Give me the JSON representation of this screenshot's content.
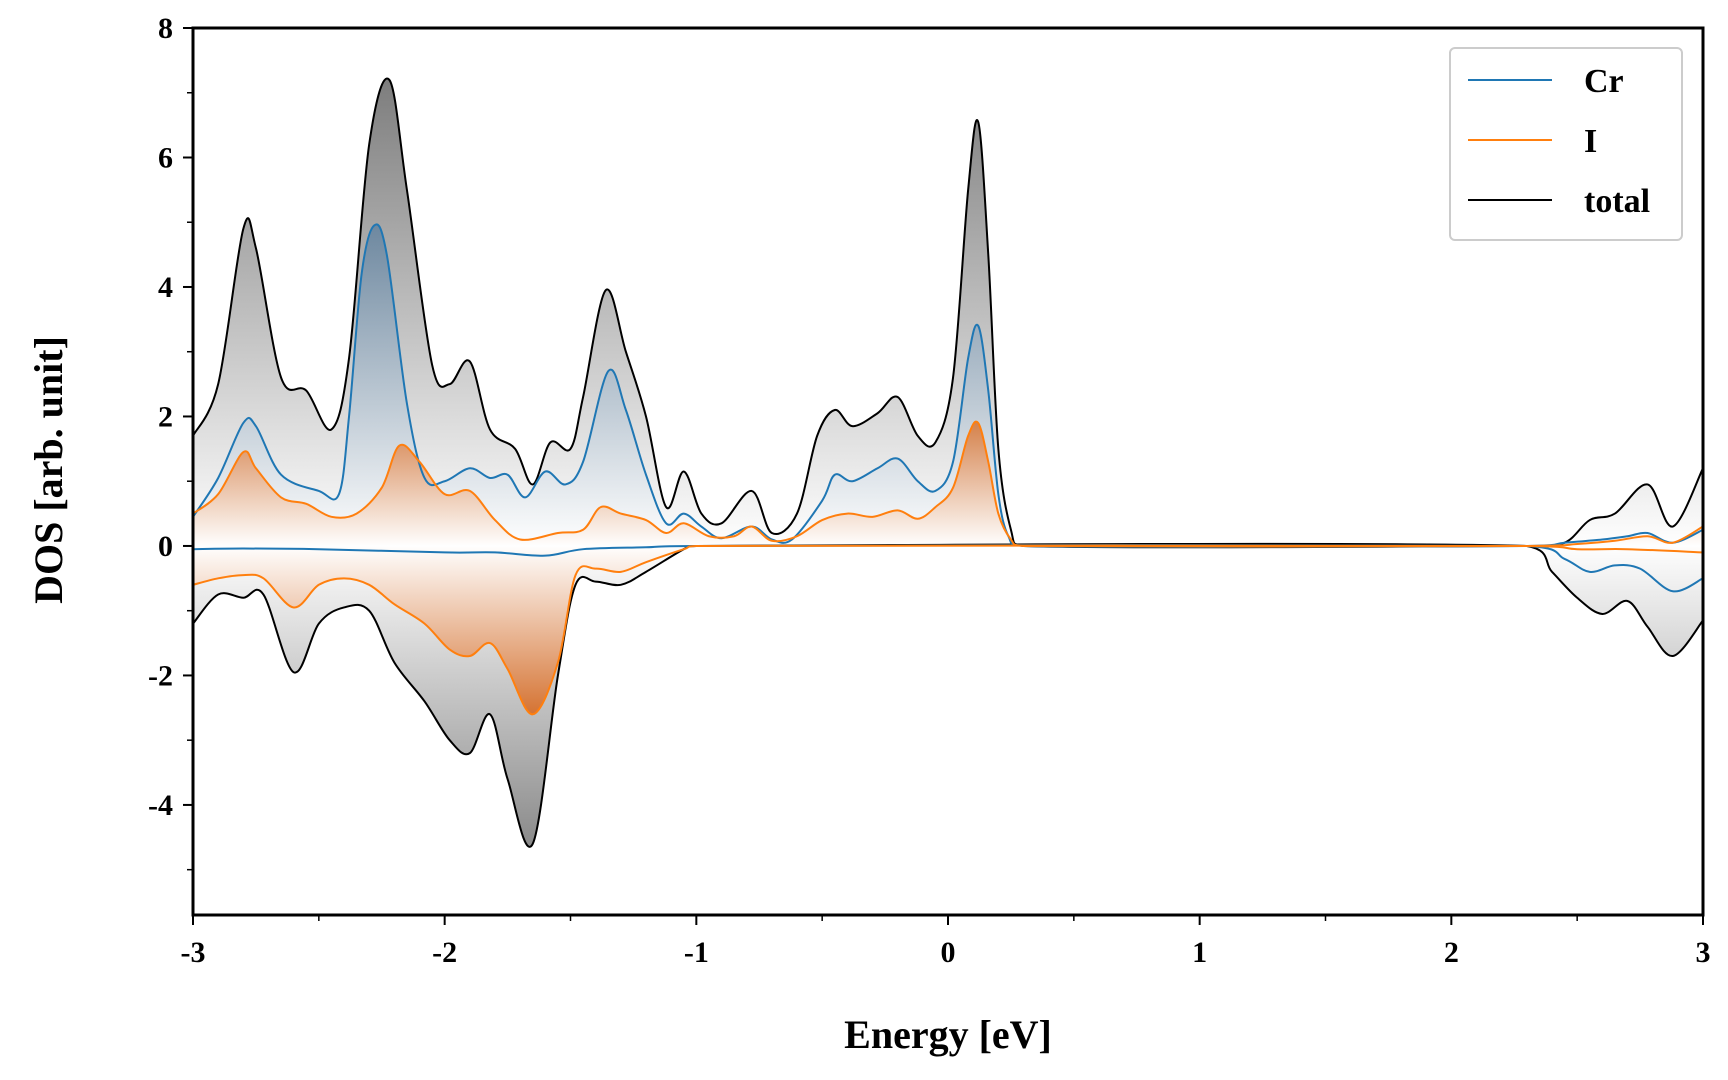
{
  "chart_data": {
    "type": "line",
    "xlabel": "Energy [eV]",
    "ylabel": "DOS [arb. unit]",
    "xlim": [
      -3,
      3
    ],
    "ylim": [
      -5.7,
      8.0
    ],
    "xticks": [
      -3,
      -2,
      -1,
      0,
      1,
      2,
      3
    ],
    "yticks": [
      -4,
      -2,
      0,
      2,
      4,
      6,
      8
    ],
    "grid": false,
    "legend_position": "top-right",
    "series": [
      {
        "name": "Cr",
        "color": "#1f77b4",
        "spin_up": [
          [
            -3,
            0.45
          ],
          [
            -2.9,
            1.05
          ],
          [
            -2.8,
            1.9
          ],
          [
            -2.75,
            1.85
          ],
          [
            -2.65,
            1.1
          ],
          [
            -2.5,
            0.85
          ],
          [
            -2.42,
            0.8
          ],
          [
            -2.38,
            2.0
          ],
          [
            -2.33,
            4.2
          ],
          [
            -2.28,
            4.95
          ],
          [
            -2.23,
            4.5
          ],
          [
            -2.15,
            2.2
          ],
          [
            -2.08,
            1.05
          ],
          [
            -2.0,
            1.0
          ],
          [
            -1.9,
            1.2
          ],
          [
            -1.82,
            1.05
          ],
          [
            -1.75,
            1.1
          ],
          [
            -1.68,
            0.75
          ],
          [
            -1.6,
            1.15
          ],
          [
            -1.52,
            0.95
          ],
          [
            -1.45,
            1.3
          ],
          [
            -1.35,
            2.7
          ],
          [
            -1.28,
            2.1
          ],
          [
            -1.2,
            1.1
          ],
          [
            -1.12,
            0.35
          ],
          [
            -1.05,
            0.5
          ],
          [
            -0.98,
            0.3
          ],
          [
            -0.9,
            0.12
          ],
          [
            -0.78,
            0.3
          ],
          [
            -0.7,
            0.1
          ],
          [
            -0.62,
            0.1
          ],
          [
            -0.5,
            0.7
          ],
          [
            -0.45,
            1.1
          ],
          [
            -0.38,
            1.0
          ],
          [
            -0.28,
            1.2
          ],
          [
            -0.2,
            1.35
          ],
          [
            -0.12,
            1.0
          ],
          [
            -0.05,
            0.85
          ],
          [
            0.02,
            1.3
          ],
          [
            0.08,
            2.9
          ],
          [
            0.12,
            3.4
          ],
          [
            0.16,
            2.4
          ],
          [
            0.2,
            0.8
          ],
          [
            0.24,
            0.15
          ],
          [
            0.3,
            0.0
          ],
          [
            2.3,
            0.0
          ],
          [
            2.45,
            0.05
          ],
          [
            2.6,
            0.1
          ],
          [
            2.7,
            0.15
          ],
          [
            2.78,
            0.2
          ],
          [
            2.88,
            0.05
          ],
          [
            3,
            0.25
          ]
        ],
        "spin_down": [
          [
            -3,
            -0.05
          ],
          [
            -2.8,
            -0.04
          ],
          [
            -2.5,
            -0.05
          ],
          [
            -2.0,
            -0.1
          ],
          [
            -1.8,
            -0.1
          ],
          [
            -1.6,
            -0.15
          ],
          [
            -1.45,
            -0.05
          ],
          [
            -1.2,
            -0.02
          ],
          [
            -1.0,
            0.0
          ],
          [
            2.3,
            0.0
          ],
          [
            2.45,
            -0.2
          ],
          [
            2.55,
            -0.4
          ],
          [
            2.65,
            -0.3
          ],
          [
            2.75,
            -0.35
          ],
          [
            2.88,
            -0.7
          ],
          [
            3,
            -0.5
          ]
        ]
      },
      {
        "name": "I",
        "color": "#ff7f0e",
        "spin_up": [
          [
            -3,
            0.5
          ],
          [
            -2.9,
            0.8
          ],
          [
            -2.8,
            1.45
          ],
          [
            -2.75,
            1.2
          ],
          [
            -2.65,
            0.75
          ],
          [
            -2.55,
            0.65
          ],
          [
            -2.45,
            0.45
          ],
          [
            -2.35,
            0.5
          ],
          [
            -2.25,
            0.9
          ],
          [
            -2.18,
            1.55
          ],
          [
            -2.1,
            1.3
          ],
          [
            -2.0,
            0.8
          ],
          [
            -1.9,
            0.85
          ],
          [
            -1.8,
            0.4
          ],
          [
            -1.7,
            0.1
          ],
          [
            -1.55,
            0.2
          ],
          [
            -1.45,
            0.25
          ],
          [
            -1.38,
            0.6
          ],
          [
            -1.3,
            0.5
          ],
          [
            -1.2,
            0.4
          ],
          [
            -1.12,
            0.2
          ],
          [
            -1.05,
            0.35
          ],
          [
            -0.95,
            0.15
          ],
          [
            -0.85,
            0.15
          ],
          [
            -0.78,
            0.3
          ],
          [
            -0.7,
            0.08
          ],
          [
            -0.6,
            0.15
          ],
          [
            -0.5,
            0.4
          ],
          [
            -0.4,
            0.5
          ],
          [
            -0.3,
            0.45
          ],
          [
            -0.2,
            0.55
          ],
          [
            -0.12,
            0.42
          ],
          [
            -0.05,
            0.6
          ],
          [
            0.02,
            0.9
          ],
          [
            0.08,
            1.7
          ],
          [
            0.12,
            1.9
          ],
          [
            0.16,
            1.3
          ],
          [
            0.2,
            0.5
          ],
          [
            0.25,
            0.1
          ],
          [
            0.3,
            0.0
          ],
          [
            2.3,
            0.0
          ],
          [
            2.5,
            0.03
          ],
          [
            2.65,
            0.08
          ],
          [
            2.78,
            0.15
          ],
          [
            2.88,
            0.05
          ],
          [
            3,
            0.3
          ]
        ],
        "spin_down": [
          [
            -3,
            -0.6
          ],
          [
            -2.9,
            -0.5
          ],
          [
            -2.8,
            -0.45
          ],
          [
            -2.72,
            -0.5
          ],
          [
            -2.6,
            -0.95
          ],
          [
            -2.5,
            -0.6
          ],
          [
            -2.4,
            -0.5
          ],
          [
            -2.3,
            -0.6
          ],
          [
            -2.2,
            -0.9
          ],
          [
            -2.08,
            -1.2
          ],
          [
            -1.98,
            -1.6
          ],
          [
            -1.9,
            -1.7
          ],
          [
            -1.82,
            -1.5
          ],
          [
            -1.75,
            -1.9
          ],
          [
            -1.65,
            -2.6
          ],
          [
            -1.55,
            -1.8
          ],
          [
            -1.48,
            -0.45
          ],
          [
            -1.4,
            -0.35
          ],
          [
            -1.3,
            -0.4
          ],
          [
            -1.2,
            -0.25
          ],
          [
            -1.05,
            -0.05
          ],
          [
            -1.0,
            0.0
          ],
          [
            2.3,
            0.0
          ],
          [
            2.5,
            -0.05
          ],
          [
            2.7,
            -0.05
          ],
          [
            3,
            -0.1
          ]
        ]
      },
      {
        "name": "total",
        "color": "#000000",
        "spin_up": [
          [
            -3,
            1.7
          ],
          [
            -2.9,
            2.5
          ],
          [
            -2.8,
            4.9
          ],
          [
            -2.75,
            4.6
          ],
          [
            -2.65,
            2.6
          ],
          [
            -2.55,
            2.4
          ],
          [
            -2.45,
            1.8
          ],
          [
            -2.38,
            2.9
          ],
          [
            -2.3,
            6.2
          ],
          [
            -2.22,
            7.2
          ],
          [
            -2.15,
            5.5
          ],
          [
            -2.05,
            2.8
          ],
          [
            -1.98,
            2.5
          ],
          [
            -1.9,
            2.85
          ],
          [
            -1.82,
            1.8
          ],
          [
            -1.72,
            1.5
          ],
          [
            -1.65,
            0.95
          ],
          [
            -1.58,
            1.6
          ],
          [
            -1.5,
            1.5
          ],
          [
            -1.45,
            2.3
          ],
          [
            -1.36,
            3.95
          ],
          [
            -1.28,
            3.0
          ],
          [
            -1.2,
            2.0
          ],
          [
            -1.12,
            0.6
          ],
          [
            -1.05,
            1.15
          ],
          [
            -0.98,
            0.5
          ],
          [
            -0.9,
            0.35
          ],
          [
            -0.78,
            0.85
          ],
          [
            -0.7,
            0.2
          ],
          [
            -0.6,
            0.5
          ],
          [
            -0.52,
            1.7
          ],
          [
            -0.45,
            2.1
          ],
          [
            -0.38,
            1.85
          ],
          [
            -0.28,
            2.05
          ],
          [
            -0.2,
            2.3
          ],
          [
            -0.12,
            1.7
          ],
          [
            -0.05,
            1.6
          ],
          [
            0.02,
            2.6
          ],
          [
            0.08,
            5.5
          ],
          [
            0.12,
            6.55
          ],
          [
            0.16,
            4.5
          ],
          [
            0.2,
            1.5
          ],
          [
            0.25,
            0.25
          ],
          [
            0.3,
            0.0
          ],
          [
            2.3,
            0.0
          ],
          [
            2.45,
            0.05
          ],
          [
            2.55,
            0.4
          ],
          [
            2.65,
            0.5
          ],
          [
            2.78,
            0.95
          ],
          [
            2.88,
            0.3
          ],
          [
            3,
            1.2
          ]
        ],
        "spin_down": [
          [
            -3,
            -1.2
          ],
          [
            -2.9,
            -0.75
          ],
          [
            -2.8,
            -0.8
          ],
          [
            -2.72,
            -0.75
          ],
          [
            -2.6,
            -1.95
          ],
          [
            -2.5,
            -1.2
          ],
          [
            -2.4,
            -0.95
          ],
          [
            -2.3,
            -1.0
          ],
          [
            -2.2,
            -1.8
          ],
          [
            -2.08,
            -2.4
          ],
          [
            -1.98,
            -3.0
          ],
          [
            -1.9,
            -3.2
          ],
          [
            -1.82,
            -2.6
          ],
          [
            -1.75,
            -3.6
          ],
          [
            -1.65,
            -4.6
          ],
          [
            -1.55,
            -2.0
          ],
          [
            -1.48,
            -0.6
          ],
          [
            -1.4,
            -0.55
          ],
          [
            -1.3,
            -0.6
          ],
          [
            -1.2,
            -0.4
          ],
          [
            -1.05,
            -0.05
          ],
          [
            -1.0,
            0.0
          ],
          [
            2.3,
            0.0
          ],
          [
            2.4,
            -0.4
          ],
          [
            2.5,
            -0.8
          ],
          [
            2.6,
            -1.05
          ],
          [
            2.7,
            -0.85
          ],
          [
            2.78,
            -1.25
          ],
          [
            2.88,
            -1.7
          ],
          [
            3,
            -1.15
          ]
        ]
      }
    ]
  }
}
